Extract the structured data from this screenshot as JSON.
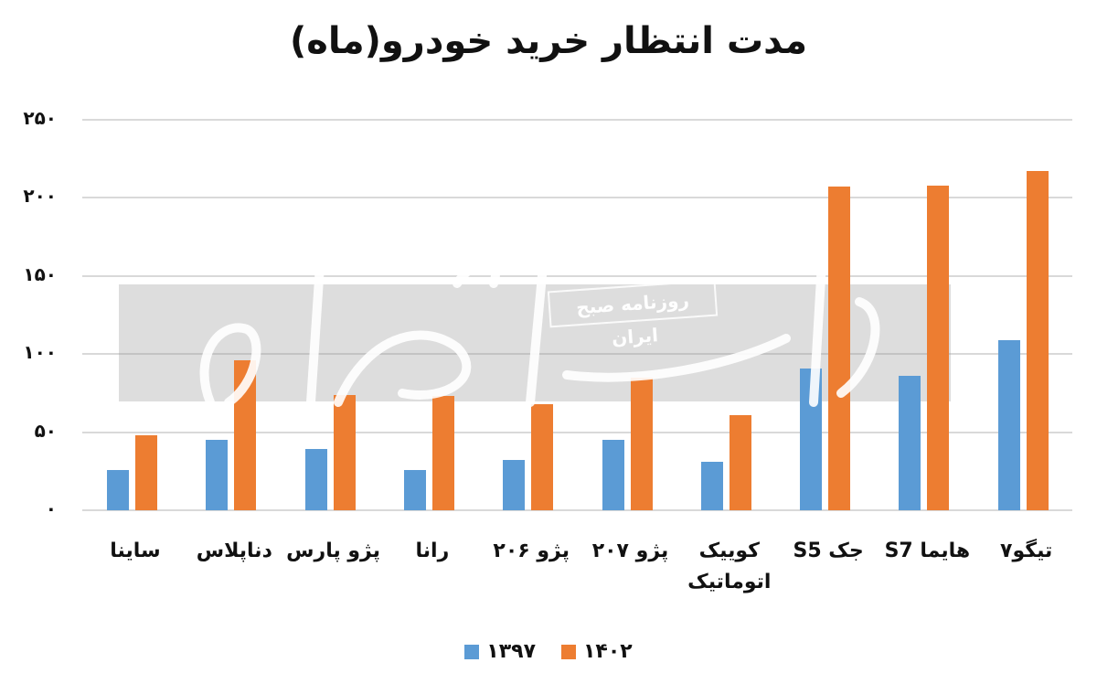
{
  "title": "مدت انتظار خرید خودرو(ماه)",
  "watermark": {
    "caption": "روزنامه صبح ایران",
    "logo": "دنیای اقتصاد"
  },
  "colors": {
    "series_1397": "#5B9BD5",
    "series_1402": "#ED7D31",
    "grid": "#d9d9d9"
  },
  "y_ticks": [
    "۰",
    "۵۰",
    "۱۰۰",
    "۱۵۰",
    "۲۰۰",
    "۲۵۰"
  ],
  "legend": [
    {
      "label": "۱۳۹۷",
      "color": "#5B9BD5"
    },
    {
      "label": "۱۴۰۲",
      "color": "#ED7D31"
    }
  ],
  "chart_data": {
    "type": "bar",
    "title": "مدت انتظار خرید خودرو(ماه)",
    "xlabel": "",
    "ylabel": "",
    "ylim": [
      0,
      250
    ],
    "yticks": [
      0,
      50,
      100,
      150,
      200,
      250
    ],
    "grid": true,
    "legend_position": "bottom",
    "categories": [
      "ساینا",
      "دناپلاس",
      "پژو پارس",
      "رانا",
      "پژو ۲۰۶",
      "پژو ۲۰۷",
      "کوییک اتوماتیک",
      "جک S5",
      "هایما S7",
      "تیگو۷"
    ],
    "series": [
      {
        "name": "۱۳۹۷",
        "color": "#5B9BD5",
        "values": [
          26,
          45,
          39,
          26,
          32,
          45,
          31,
          91,
          86,
          109
        ]
      },
      {
        "name": "۱۴۰۲",
        "color": "#ED7D31",
        "values": [
          48,
          96,
          74,
          73,
          68,
          85,
          61,
          207,
          208,
          217
        ]
      }
    ]
  }
}
